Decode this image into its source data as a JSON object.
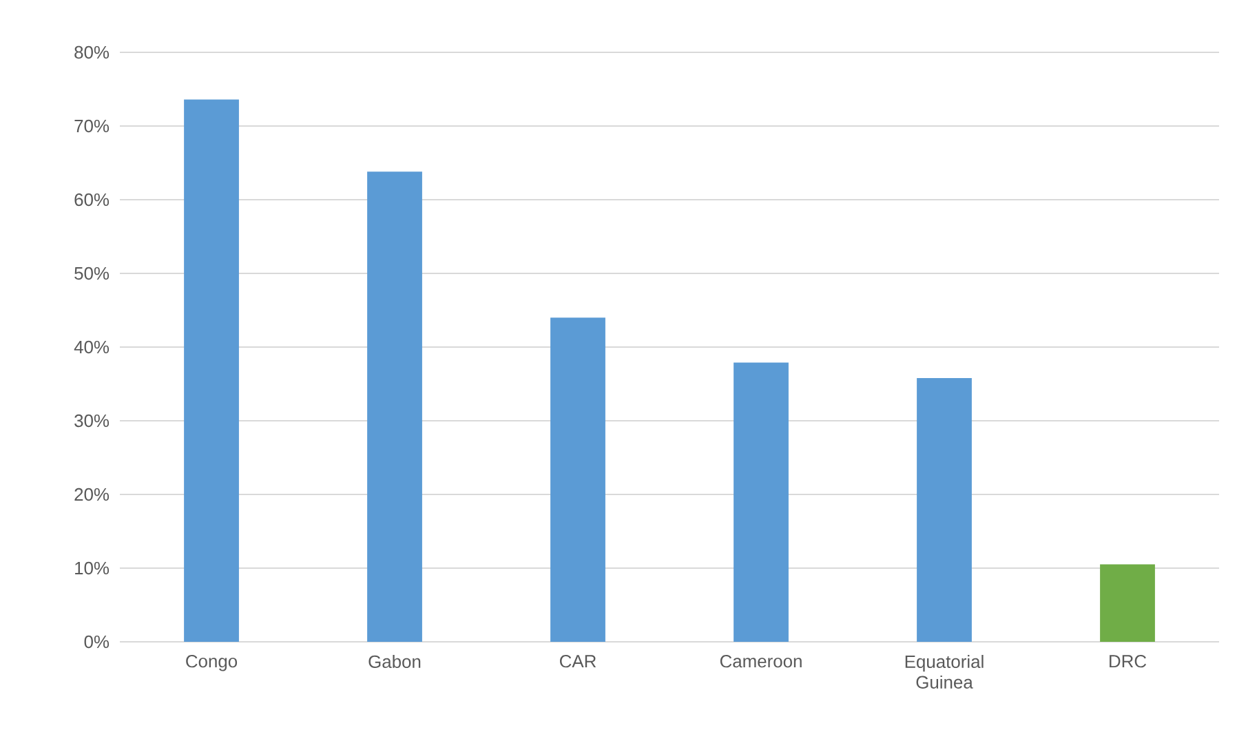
{
  "chart_data": {
    "type": "bar",
    "categories": [
      "Congo",
      "Gabon",
      "CAR",
      "Cameroon",
      "Equatorial Guinea",
      "DRC"
    ],
    "values": [
      73.6,
      63.8,
      44.0,
      37.9,
      35.8,
      10.5
    ],
    "colors": [
      "#5b9bd5",
      "#5b9bd5",
      "#5b9bd5",
      "#5b9bd5",
      "#5b9bd5",
      "#70ad47"
    ],
    "ylim": [
      0,
      80
    ],
    "yticks": [
      {
        "value": 0,
        "label": "0%"
      },
      {
        "value": 10,
        "label": "10%"
      },
      {
        "value": 20,
        "label": "20%"
      },
      {
        "value": 30,
        "label": "30%"
      },
      {
        "value": 40,
        "label": "40%"
      },
      {
        "value": 50,
        "label": "50%"
      },
      {
        "value": 60,
        "label": "60%"
      },
      {
        "value": 70,
        "label": "70%"
      },
      {
        "value": 80,
        "label": "80%"
      }
    ],
    "grid": "y"
  }
}
